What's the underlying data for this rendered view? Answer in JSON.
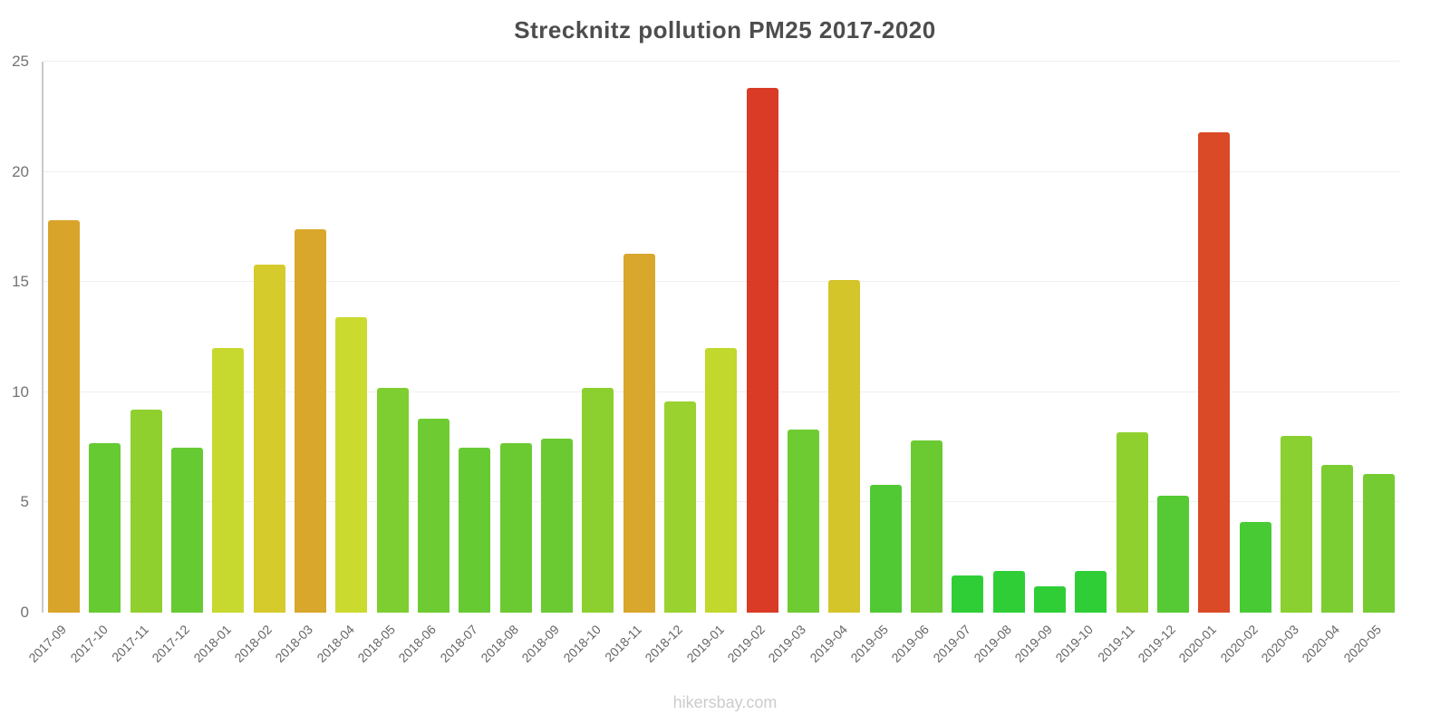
{
  "chart_data": {
    "type": "bar",
    "title": "Strecknitz pollution PM25 2017-2020",
    "xlabel": "",
    "ylabel": "",
    "ylim": [
      0,
      25
    ],
    "yticks": [
      0,
      5,
      10,
      15,
      20,
      25
    ],
    "grid": "horizontal-faint",
    "legend": "none",
    "categories": [
      "2017-09",
      "2017-10",
      "2017-11",
      "2017-12",
      "2018-01",
      "2018-02",
      "2018-03",
      "2018-04",
      "2018-05",
      "2018-06",
      "2018-07",
      "2018-08",
      "2018-09",
      "2018-10",
      "2018-11",
      "2018-12",
      "2019-01",
      "2019-02",
      "2019-03",
      "2019-04",
      "2019-05",
      "2019-06",
      "2019-07",
      "2019-08",
      "2019-09",
      "2019-10",
      "2019-11",
      "2019-12",
      "2020-01",
      "2020-02",
      "2020-03",
      "2020-04",
      "2020-05"
    ],
    "values": [
      17.8,
      7.7,
      9.2,
      7.5,
      12.0,
      15.8,
      17.4,
      13.4,
      10.2,
      8.8,
      7.5,
      7.7,
      7.9,
      10.2,
      16.3,
      9.6,
      12.0,
      23.8,
      8.3,
      15.1,
      5.8,
      7.8,
      1.7,
      1.9,
      1.2,
      1.9,
      8.2,
      5.3,
      21.8,
      4.1,
      8.0,
      6.7,
      6.3
    ],
    "colors": [
      "#D9A42A",
      "#66CA33",
      "#8FD02F",
      "#66CA33",
      "#C7D92E",
      "#D5CB2C",
      "#D8A72B",
      "#CBDA2F",
      "#7FCE31",
      "#6FCB32",
      "#66CA33",
      "#6BCA32",
      "#6BCA32",
      "#8CD030",
      "#D8A72B",
      "#9AD22F",
      "#C2D82D",
      "#DA3B26",
      "#6FCB32",
      "#D4C52B",
      "#50C934",
      "#6BCA32",
      "#2FCE37",
      "#2FCE37",
      "#2FCE37",
      "#2FCE37",
      "#8FD02F",
      "#55CA34",
      "#DA4A26",
      "#48CA35",
      "#8AD030",
      "#7BCD31",
      "#74CC32"
    ]
  },
  "footer": {
    "watermark": "hikersbay.com"
  }
}
